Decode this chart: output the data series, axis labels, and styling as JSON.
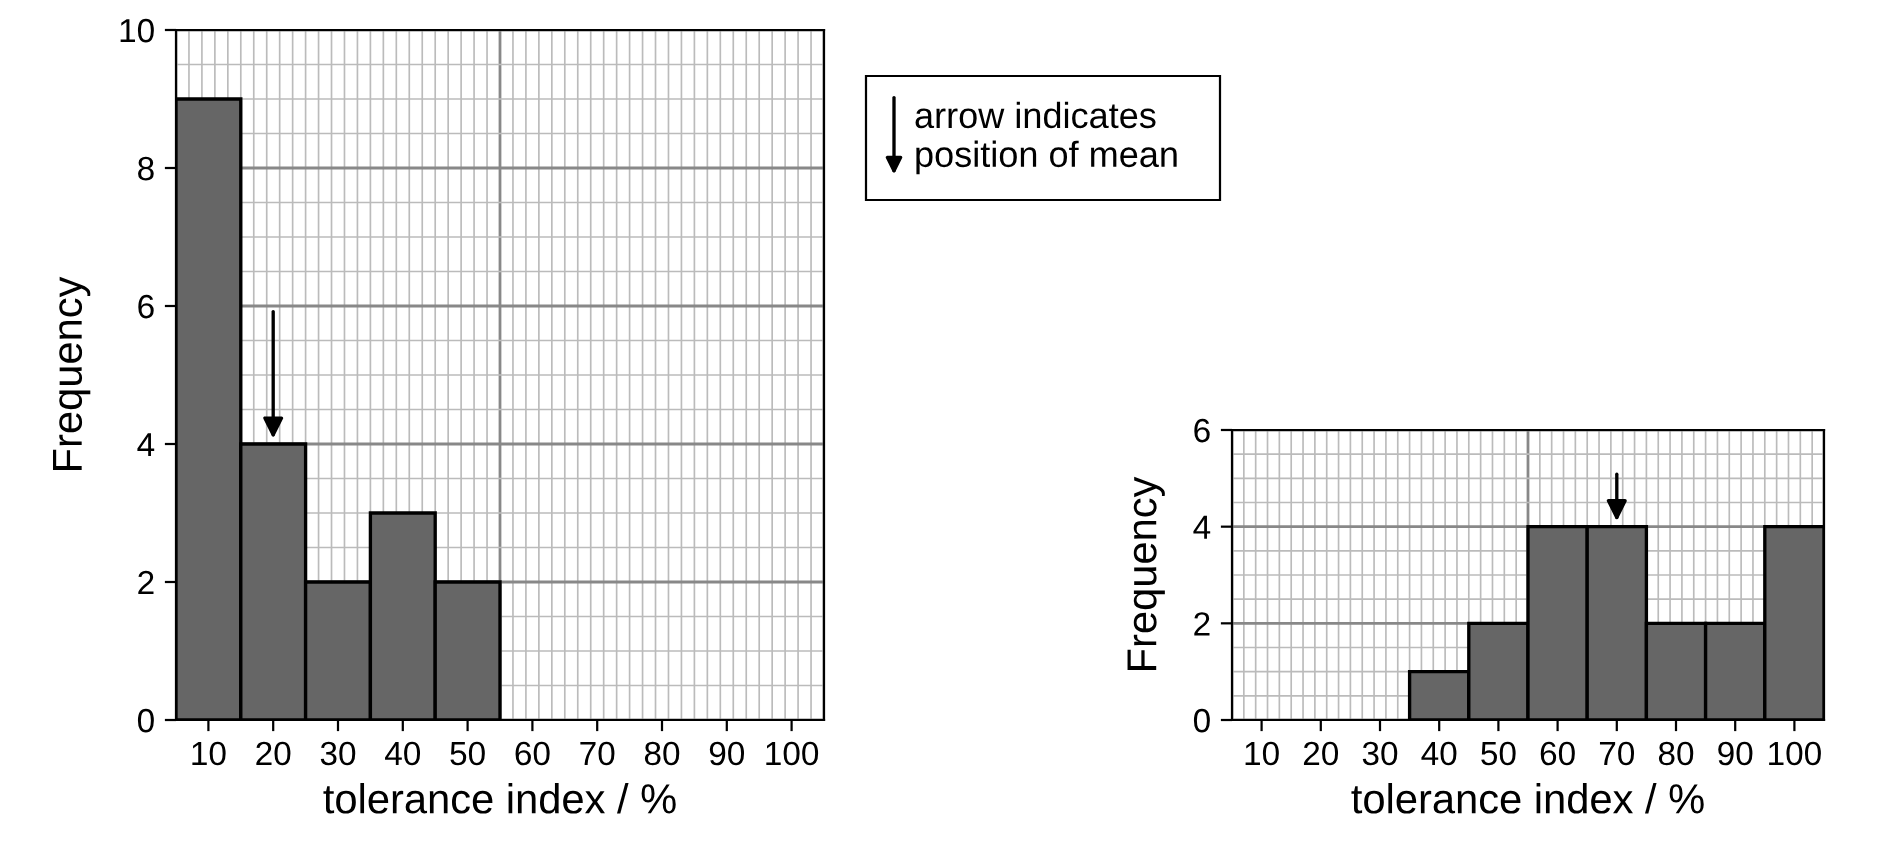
{
  "chart_data": [
    {
      "type": "bar",
      "xlabel": "tolerance index / %",
      "ylabel": "Frequency",
      "categories": [
        "10",
        "20",
        "30",
        "40",
        "50",
        "60",
        "70",
        "80",
        "90",
        "100"
      ],
      "values": [
        9,
        4,
        2,
        3,
        2,
        0,
        0,
        0,
        0,
        0
      ],
      "color": "#666666",
      "ylim": [
        0,
        10
      ],
      "yticks": [
        0,
        2,
        4,
        6,
        8,
        10
      ],
      "grid": true,
      "ref_lines": [
        {
          "axis": "x",
          "value": "20",
          "label": null
        }
      ],
      "annotations": [
        "arrow indicates\nposition of mean"
      ]
    },
    {
      "type": "bar",
      "xlabel": "tolerance index / %",
      "ylabel": "Frequency",
      "categories": [
        "10",
        "20",
        "30",
        "40",
        "50",
        "60",
        "70",
        "80",
        "90",
        "100"
      ],
      "values": [
        0,
        0,
        0,
        1,
        2,
        4,
        4,
        2,
        2,
        4
      ],
      "color": "#666666",
      "ylim": [
        0,
        6
      ],
      "yticks": [
        0,
        2,
        4,
        6
      ],
      "grid": true,
      "ref_lines": [
        {
          "axis": "x",
          "value": "70",
          "label": null
        }
      ]
    }
  ]
}
